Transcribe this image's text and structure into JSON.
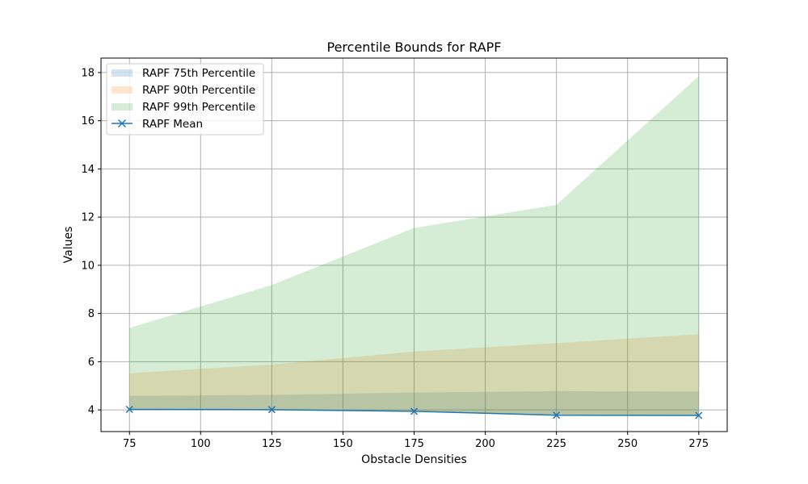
{
  "chart_data": {
    "type": "area",
    "title": "Percentile Bounds for RAPF",
    "xlabel": "Obstacle Densities",
    "ylabel": "Values",
    "x": [
      75,
      125,
      175,
      225,
      275
    ],
    "xlim": [
      65,
      285
    ],
    "ylim": [
      3.1,
      18.6
    ],
    "xticks": [
      75,
      100,
      125,
      150,
      175,
      200,
      225,
      250,
      275
    ],
    "yticks": [
      4,
      6,
      8,
      10,
      12,
      14,
      16,
      18
    ],
    "grid": true,
    "legend_position": "top-left",
    "series": [
      {
        "name": "RAPF 75th Percentile",
        "kind": "band",
        "color": "#1f77b4",
        "opacity": 0.2,
        "values": [
          4.58,
          4.62,
          4.72,
          4.78,
          4.76
        ]
      },
      {
        "name": "RAPF 90th Percentile",
        "kind": "band",
        "color": "#ff7f0e",
        "opacity": 0.2,
        "values": [
          5.52,
          5.88,
          6.42,
          6.77,
          7.14
        ]
      },
      {
        "name": "RAPF 99th Percentile",
        "kind": "band",
        "color": "#2ca02c",
        "opacity": 0.2,
        "values": [
          7.4,
          9.18,
          11.55,
          12.51,
          17.85
        ]
      },
      {
        "name": "RAPF Mean",
        "kind": "line",
        "color": "#1f77b4",
        "marker": "x",
        "values": [
          4.02,
          4.01,
          3.94,
          3.78,
          3.77
        ]
      }
    ]
  }
}
